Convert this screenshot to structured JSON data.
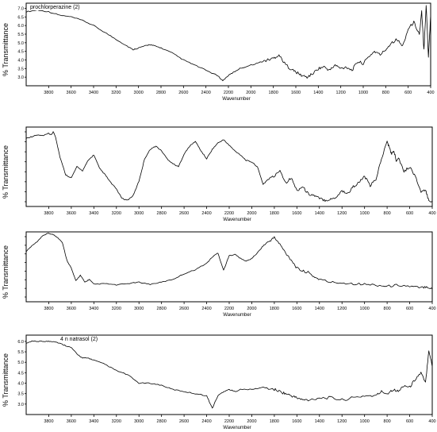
{
  "chart_data": [
    {
      "type": "line",
      "title": "prochlorperazine (2)",
      "xlabel": "Wavenumber",
      "ylabel": "% Transmittance",
      "xlim": [
        4000,
        400
      ],
      "x_reversed": true,
      "ylim": [
        2.5,
        7.3
      ],
      "xticks": [
        "3800",
        "3600",
        "3400",
        "3200",
        "3000",
        "2800",
        "2600",
        "2400",
        "2200",
        "2000",
        "1800",
        "1600",
        "1400",
        "1200",
        "1000",
        "800",
        "600",
        "400"
      ],
      "yticks": [
        "7.0",
        "6.5",
        "6.0",
        "5.5",
        "5.0",
        "4.5",
        "4.0",
        "3.5",
        "3.0"
      ],
      "series": [
        {
          "x": [
            4000,
            3900,
            3800,
            3700,
            3600,
            3500,
            3400,
            3300,
            3200,
            3100,
            3050,
            3000,
            2950,
            2900,
            2850,
            2800,
            2700,
            2600,
            2500,
            2400,
            2300,
            2250,
            2200,
            2150,
            2100,
            2000,
            1900,
            1850,
            1800,
            1750,
            1700,
            1650,
            1600,
            1550,
            1500,
            1450,
            1400,
            1350,
            1300,
            1250,
            1200,
            1150,
            1100,
            1050,
            1000,
            950,
            900,
            850,
            800,
            750,
            700,
            650,
            600,
            550,
            500,
            480,
            460,
            440,
            420,
            400
          ],
          "y": [
            6.8,
            6.9,
            6.8,
            6.6,
            6.5,
            6.3,
            6.0,
            5.6,
            5.2,
            4.8,
            4.6,
            4.7,
            4.8,
            4.9,
            4.8,
            4.7,
            4.4,
            4.0,
            3.7,
            3.4,
            3.1,
            2.8,
            3.1,
            3.3,
            3.5,
            3.7,
            3.9,
            4.0,
            4.1,
            4.3,
            3.8,
            3.5,
            3.3,
            3.1,
            3.0,
            3.2,
            3.5,
            3.6,
            3.4,
            3.7,
            3.5,
            3.6,
            3.4,
            3.9,
            3.8,
            4.2,
            4.5,
            4.3,
            4.6,
            5.0,
            5.2,
            4.8,
            5.8,
            6.2,
            5.5,
            6.8,
            4.6,
            7.2,
            4.2,
            6.6
          ]
        }
      ]
    },
    {
      "type": "line",
      "title": "",
      "xlabel": "Wavenumber",
      "ylabel": "% Transmittance",
      "xlim": [
        4000,
        400
      ],
      "x_reversed": true,
      "ylim": [
        0,
        100
      ],
      "xticks": [
        "3800",
        "3600",
        "3400",
        "3200",
        "3000",
        "2800",
        "2600",
        "2400",
        "2200",
        "2000",
        "1800",
        "1600",
        "1400",
        "1200",
        "1000",
        "800",
        "600",
        "400"
      ],
      "series": [
        {
          "x": [
            4000,
            3950,
            3900,
            3850,
            3800,
            3780,
            3760,
            3740,
            3700,
            3650,
            3600,
            3550,
            3500,
            3450,
            3400,
            3350,
            3300,
            3250,
            3200,
            3150,
            3100,
            3050,
            3000,
            2950,
            2900,
            2850,
            2800,
            2750,
            2700,
            2650,
            2600,
            2550,
            2500,
            2450,
            2400,
            2350,
            2300,
            2250,
            2200,
            2150,
            2100,
            2050,
            2000,
            1950,
            1900,
            1850,
            1800,
            1750,
            1700,
            1650,
            1600,
            1550,
            1500,
            1450,
            1400,
            1350,
            1300,
            1250,
            1200,
            1150,
            1100,
            1050,
            1000,
            950,
            900,
            850,
            800,
            780,
            760,
            740,
            720,
            700,
            650,
            600,
            550,
            500,
            460,
            430,
            400
          ],
          "y": [
            86,
            88,
            90,
            89,
            92,
            90,
            94,
            88,
            62,
            40,
            36,
            50,
            45,
            58,
            65,
            48,
            40,
            30,
            22,
            10,
            8,
            14,
            32,
            60,
            72,
            76,
            70,
            60,
            54,
            50,
            66,
            76,
            82,
            70,
            60,
            72,
            80,
            84,
            77,
            70,
            65,
            58,
            56,
            50,
            28,
            35,
            38,
            46,
            30,
            36,
            20,
            25,
            16,
            14,
            10,
            8,
            9,
            12,
            20,
            16,
            25,
            30,
            38,
            26,
            34,
            60,
            82,
            74,
            66,
            70,
            58,
            62,
            44,
            50,
            38,
            18,
            20,
            8,
            6
          ]
        }
      ]
    },
    {
      "type": "line",
      "title": "",
      "xlabel": "Wavenumber",
      "ylabel": "% Transmittance",
      "xlim": [
        4000,
        400
      ],
      "x_reversed": true,
      "ylim": [
        0,
        100
      ],
      "xticks": [
        "3800",
        "3600",
        "3400",
        "3200",
        "3000",
        "2800",
        "2600",
        "2400",
        "2200",
        "2000",
        "1800",
        "1600",
        "1400",
        "1200",
        "1000",
        "800",
        "600",
        "400"
      ],
      "series": [
        {
          "x": [
            4000,
            3950,
            3900,
            3850,
            3800,
            3760,
            3720,
            3680,
            3640,
            3600,
            3560,
            3520,
            3480,
            3440,
            3400,
            3300,
            3200,
            3100,
            3000,
            2900,
            2800,
            2700,
            2600,
            2500,
            2400,
            2350,
            2300,
            2250,
            2200,
            2150,
            2100,
            2050,
            2000,
            1950,
            1900,
            1850,
            1800,
            1750,
            1700,
            1650,
            1600,
            1550,
            1500,
            1450,
            1400,
            1300,
            1200,
            1100,
            1000,
            900,
            800,
            700,
            600,
            500,
            450,
            400
          ],
          "y": [
            72,
            80,
            86,
            95,
            98,
            96,
            92,
            85,
            60,
            48,
            30,
            38,
            28,
            32,
            25,
            26,
            24,
            26,
            28,
            25,
            28,
            32,
            40,
            46,
            55,
            64,
            70,
            45,
            66,
            68,
            62,
            58,
            62,
            70,
            80,
            86,
            92,
            82,
            70,
            60,
            48,
            44,
            42,
            36,
            32,
            28,
            27,
            26,
            25,
            24,
            22,
            24,
            22,
            20,
            22,
            18
          ]
        }
      ]
    },
    {
      "type": "line",
      "title": "4 n natrasol (2)",
      "xlabel": "Wavenumber",
      "ylabel": "% Transmittance",
      "xlim": [
        4000,
        400
      ],
      "x_reversed": true,
      "ylim": [
        2.5,
        6.3
      ],
      "xticks": [
        "3800",
        "3600",
        "3400",
        "3200",
        "3000",
        "2800",
        "2600",
        "2400",
        "2200",
        "2000",
        "1800",
        "1600",
        "1400",
        "1200",
        "1000",
        "800",
        "600",
        "400"
      ],
      "yticks": [
        "6.0",
        "5.5",
        "5.0",
        "4.5",
        "4.0",
        "3.5",
        "3.0"
      ],
      "series": [
        {
          "x": [
            4000,
            3950,
            3900,
            3850,
            3800,
            3750,
            3700,
            3650,
            3600,
            3550,
            3500,
            3450,
            3400,
            3300,
            3200,
            3100,
            3000,
            2900,
            2800,
            2700,
            2600,
            2500,
            2400,
            2350,
            2300,
            2250,
            2200,
            2150,
            2100,
            2000,
            1900,
            1800,
            1750,
            1700,
            1650,
            1600,
            1550,
            1500,
            1400,
            1300,
            1200,
            1100,
            1000,
            900,
            850,
            800,
            750,
            700,
            650,
            600,
            550,
            500,
            460,
            430,
            400
          ],
          "y": [
            5.9,
            6.0,
            6.0,
            6.0,
            6.0,
            6.0,
            5.9,
            5.8,
            5.7,
            5.4,
            5.2,
            5.2,
            5.1,
            4.9,
            4.6,
            4.4,
            4.0,
            4.0,
            3.9,
            3.7,
            3.6,
            3.5,
            3.4,
            2.8,
            3.4,
            3.6,
            3.7,
            3.6,
            3.7,
            3.7,
            3.8,
            3.7,
            3.6,
            3.5,
            3.4,
            3.3,
            3.2,
            3.2,
            3.3,
            3.3,
            3.2,
            3.3,
            3.4,
            3.4,
            3.6,
            3.5,
            3.7,
            3.6,
            3.9,
            3.8,
            4.2,
            4.5,
            4.0,
            5.6,
            4.8
          ]
        }
      ]
    }
  ]
}
